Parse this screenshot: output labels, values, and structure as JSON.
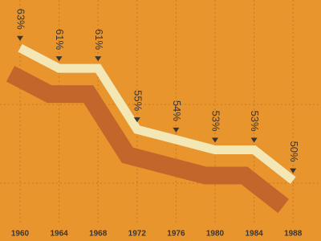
{
  "chart_data": {
    "type": "line",
    "categories": [
      "1960",
      "1964",
      "1968",
      "1972",
      "1976",
      "1980",
      "1984",
      "1988"
    ],
    "values": [
      63,
      61,
      61,
      55,
      54,
      53,
      53,
      50
    ],
    "value_labels": [
      "63%",
      "61%",
      "61%",
      "55%",
      "54%",
      "53%",
      "53%",
      "50%"
    ],
    "color": "#f4e7b6",
    "ylim": [
      45,
      67
    ]
  }
}
